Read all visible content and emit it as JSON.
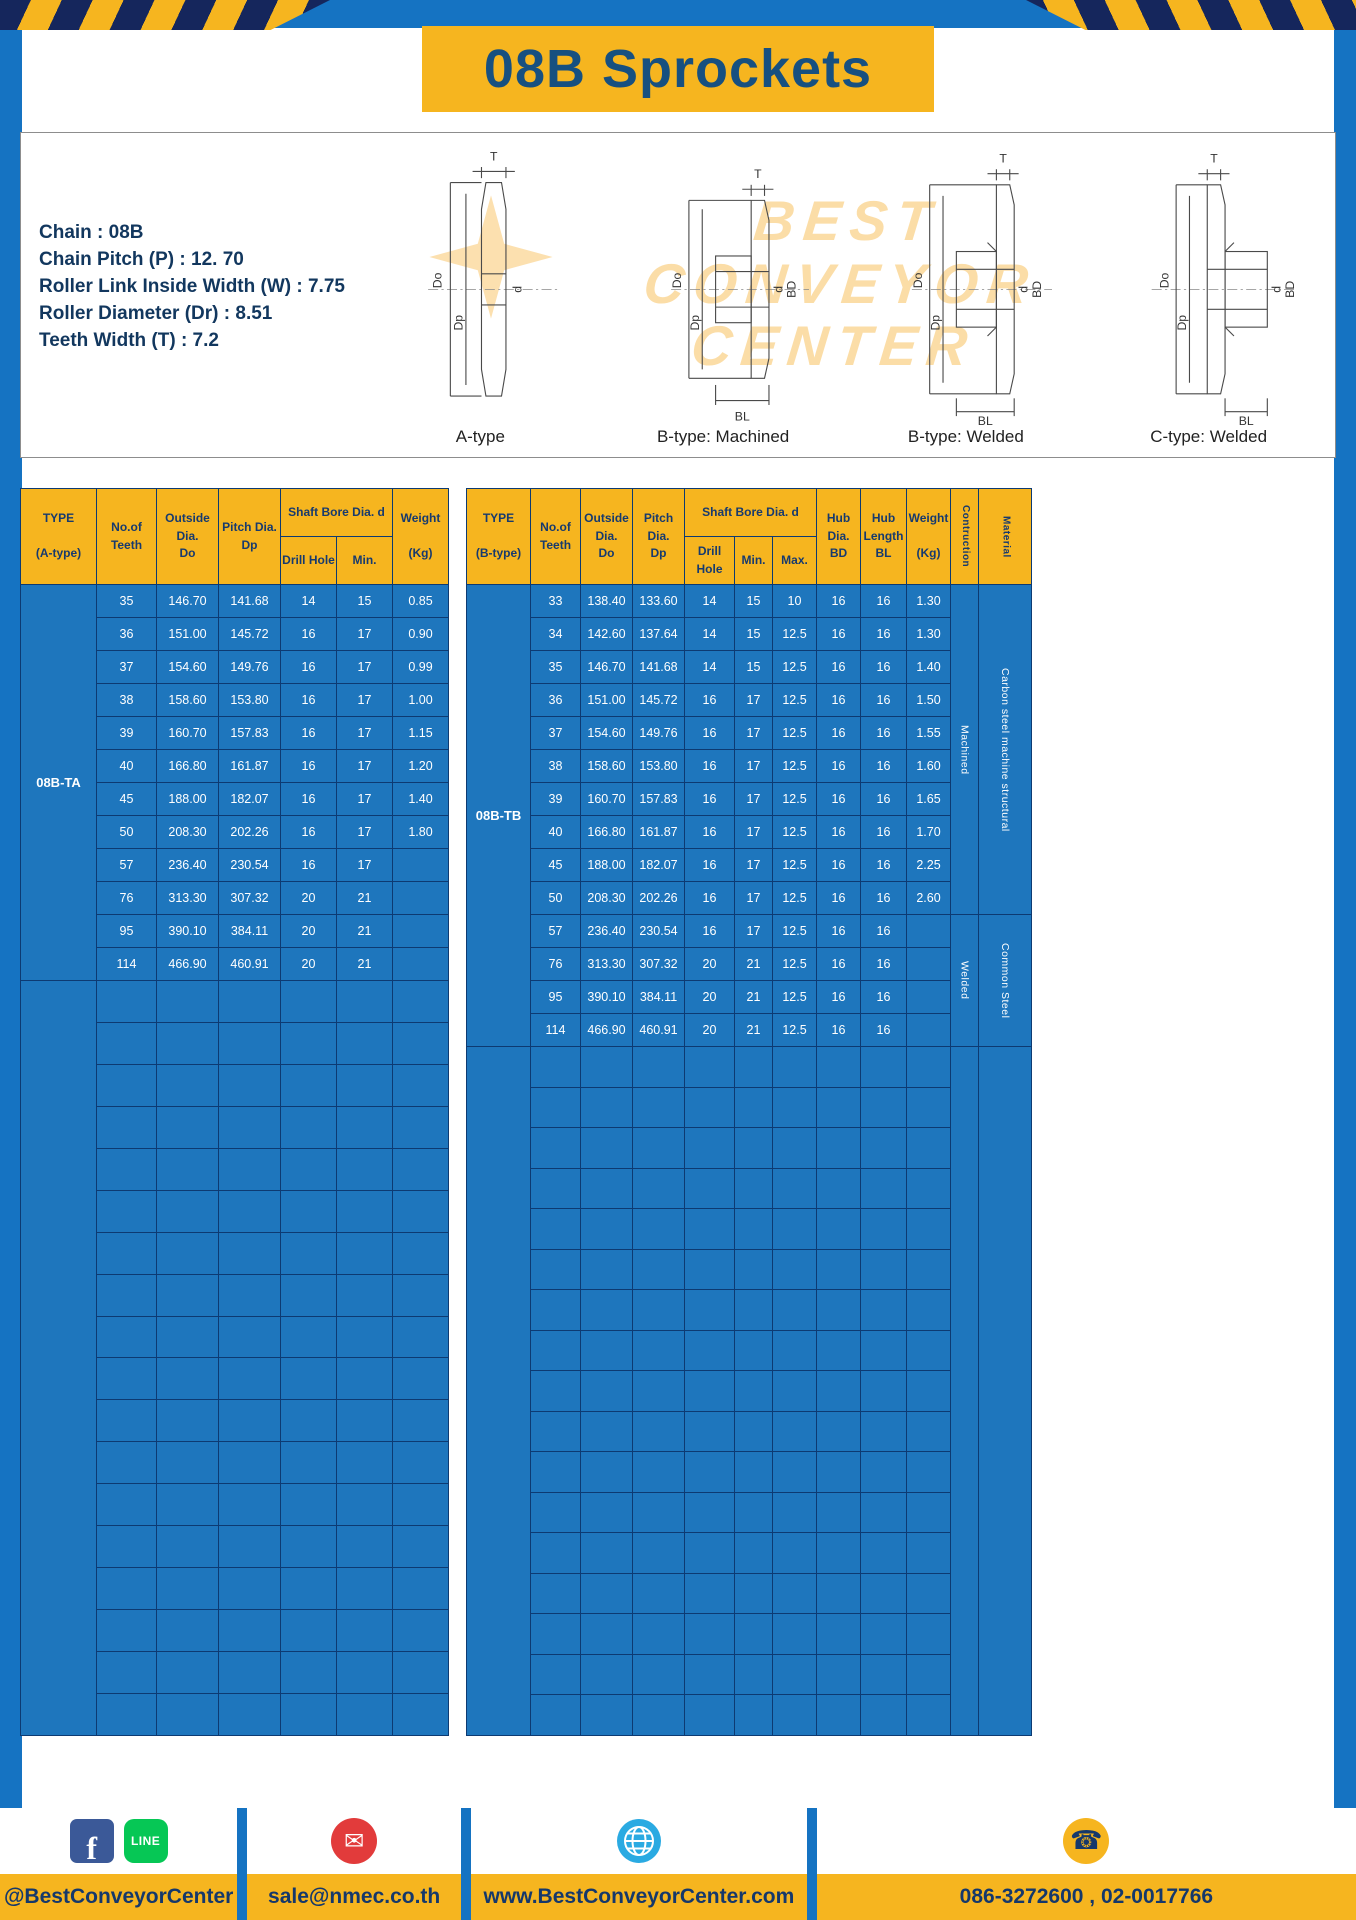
{
  "page": {
    "title": "08B Sprockets"
  },
  "specs": {
    "lines": [
      "Chain : 08B",
      "Chain Pitch (P) : 12. 70",
      "Roller Link Inside Width (W) : 7.75",
      "Roller Diameter (Dr) : 8.51",
      "Teeth Width (T) : 7.2"
    ]
  },
  "watermark": {
    "lines": [
      "BEST",
      "CONVEYOR",
      "CENTER"
    ]
  },
  "diagrams": {
    "captions": [
      "A-type",
      "B-type: Machined",
      "B-type: Welded",
      "C-type: Welded"
    ],
    "dims": {
      "t": "T",
      "do": "Do",
      "dp": "Dp",
      "d": "d",
      "bd": "BD",
      "bl": "BL"
    }
  },
  "table_a": {
    "headers": {
      "type": "TYPE\n\n(A-type)",
      "teeth": "No.of\nTeeth",
      "outside": "Outside\nDia.\nDo",
      "pitch": "Pitch Dia.\nDp",
      "shaft": "Shaft Bore Dia. d",
      "drill": "Drill Hole",
      "min": "Min.",
      "weight": "Weight\n\n(Kg)"
    },
    "type_value": "08B-TA",
    "rows": [
      [
        "35",
        "146.70",
        "141.68",
        "14",
        "15",
        "0.85"
      ],
      [
        "36",
        "151.00",
        "145.72",
        "16",
        "17",
        "0.90"
      ],
      [
        "37",
        "154.60",
        "149.76",
        "16",
        "17",
        "0.99"
      ],
      [
        "38",
        "158.60",
        "153.80",
        "16",
        "17",
        "1.00"
      ],
      [
        "39",
        "160.70",
        "157.83",
        "16",
        "17",
        "1.15"
      ],
      [
        "40",
        "166.80",
        "161.87",
        "16",
        "17",
        "1.20"
      ],
      [
        "45",
        "188.00",
        "182.07",
        "16",
        "17",
        "1.40"
      ],
      [
        "50",
        "208.30",
        "202.26",
        "16",
        "17",
        "1.80"
      ],
      [
        "57",
        "236.40",
        "230.54",
        "16",
        "17",
        ""
      ],
      [
        "76",
        "313.30",
        "307.32",
        "20",
        "21",
        ""
      ],
      [
        "95",
        "390.10",
        "384.11",
        "20",
        "21",
        ""
      ],
      [
        "114",
        "466.90",
        "460.91",
        "20",
        "21",
        ""
      ]
    ],
    "empty_rows": 18
  },
  "table_b": {
    "headers": {
      "type": "TYPE\n\n(B-type)",
      "teeth": "No.of\nTeeth",
      "outside": "Outside\nDia.\nDo",
      "pitch": "Pitch Dia.\nDp",
      "shaft": "Shaft Bore Dia. d",
      "drill": "Drill Hole",
      "min": "Min.",
      "max": "Max.",
      "hub_dia": "Hub Dia.\nBD",
      "hub_len": "Hub\nLength\nBL",
      "weight": "Weight\n\n(Kg)",
      "construction": "Contruction",
      "material": "Material"
    },
    "type_value": "08B-TB",
    "rows": [
      [
        "33",
        "138.40",
        "133.60",
        "14",
        "15",
        "10",
        "16",
        "16",
        "1.30"
      ],
      [
        "34",
        "142.60",
        "137.64",
        "14",
        "15",
        "12.5",
        "16",
        "16",
        "1.30"
      ],
      [
        "35",
        "146.70",
        "141.68",
        "14",
        "15",
        "12.5",
        "16",
        "16",
        "1.40"
      ],
      [
        "36",
        "151.00",
        "145.72",
        "16",
        "17",
        "12.5",
        "16",
        "16",
        "1.50"
      ],
      [
        "37",
        "154.60",
        "149.76",
        "16",
        "17",
        "12.5",
        "16",
        "16",
        "1.55"
      ],
      [
        "38",
        "158.60",
        "153.80",
        "16",
        "17",
        "12.5",
        "16",
        "16",
        "1.60"
      ],
      [
        "39",
        "160.70",
        "157.83",
        "16",
        "17",
        "12.5",
        "16",
        "16",
        "1.65"
      ],
      [
        "40",
        "166.80",
        "161.87",
        "16",
        "17",
        "12.5",
        "16",
        "16",
        "1.70"
      ],
      [
        "45",
        "188.00",
        "182.07",
        "16",
        "17",
        "12.5",
        "16",
        "16",
        "2.25"
      ],
      [
        "50",
        "208.30",
        "202.26",
        "16",
        "17",
        "12.5",
        "16",
        "16",
        "2.60"
      ],
      [
        "57",
        "236.40",
        "230.54",
        "16",
        "17",
        "12.5",
        "16",
        "16",
        ""
      ],
      [
        "76",
        "313.30",
        "307.32",
        "20",
        "21",
        "12.5",
        "16",
        "16",
        ""
      ],
      [
        "95",
        "390.10",
        "384.11",
        "20",
        "21",
        "12.5",
        "16",
        "16",
        ""
      ],
      [
        "114",
        "466.90",
        "460.91",
        "20",
        "21",
        "12.5",
        "16",
        "16",
        ""
      ]
    ],
    "construction_spans": [
      {
        "text": "Machined",
        "from": 0,
        "len": 10
      },
      {
        "text": "Welded",
        "from": 10,
        "len": 4
      }
    ],
    "material_spans": [
      {
        "text": "Carbon steel  machine structural",
        "from": 0,
        "len": 10
      },
      {
        "text": "Common  Steel",
        "from": 10,
        "len": 4
      }
    ],
    "empty_rows": 17
  },
  "footer": {
    "sections": [
      {
        "text": "@BestConveyorCenter"
      },
      {
        "text": "sale@nmec.co.th"
      },
      {
        "text": "www.BestConveyorCenter.com"
      },
      {
        "text": "086-3272600 , 02-0017766"
      }
    ],
    "icons": {
      "facebook": "f",
      "line": "LINE",
      "mail": "✉",
      "phone": "☎"
    }
  }
}
